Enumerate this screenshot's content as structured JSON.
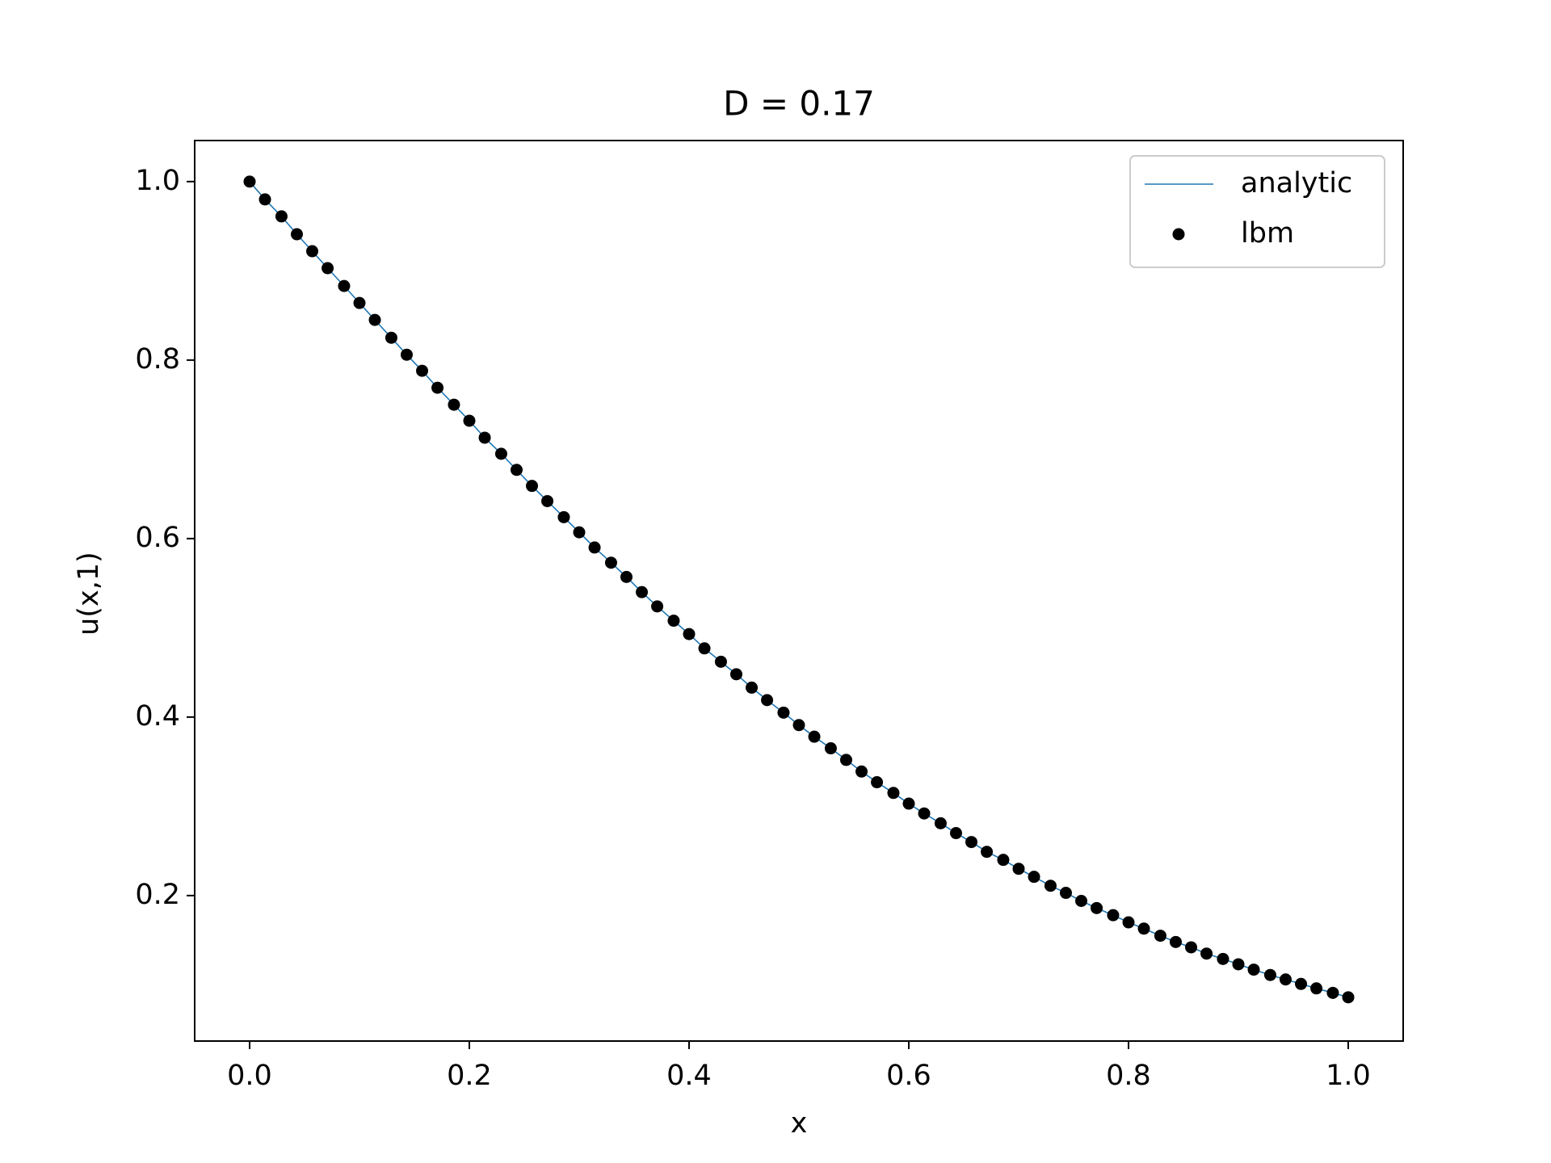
{
  "chart_data": {
    "type": "line-scatter",
    "title": "D = 0.17",
    "x_label": "x",
    "y_label": "u(x,1)",
    "x": [
      0,
      0.014,
      0.029,
      0.043,
      0.057,
      0.071,
      0.086,
      0.1,
      0.114,
      0.129,
      0.143,
      0.157,
      0.171,
      0.186,
      0.2,
      0.214,
      0.229,
      0.243,
      0.257,
      0.271,
      0.286,
      0.3,
      0.314,
      0.329,
      0.343,
      0.357,
      0.371,
      0.386,
      0.4,
      0.414,
      0.429,
      0.443,
      0.457,
      0.471,
      0.486,
      0.5,
      0.514,
      0.529,
      0.543,
      0.557,
      0.571,
      0.586,
      0.6,
      0.614,
      0.629,
      0.643,
      0.657,
      0.671,
      0.686,
      0.7,
      0.714,
      0.729,
      0.743,
      0.757,
      0.771,
      0.786,
      0.8,
      0.814,
      0.829,
      0.843,
      0.857,
      0.871,
      0.886,
      0.9,
      0.914,
      0.929,
      0.943,
      0.957,
      0.971,
      0.986,
      1.0
    ],
    "series": [
      {
        "name": "analytic",
        "style": "line",
        "color": "#1f77b4",
        "values": [
          1.0,
          0.98,
          0.961,
          0.941,
          0.922,
          0.903,
          0.883,
          0.864,
          0.845,
          0.825,
          0.806,
          0.788,
          0.769,
          0.75,
          0.732,
          0.713,
          0.695,
          0.677,
          0.659,
          0.642,
          0.624,
          0.607,
          0.59,
          0.573,
          0.557,
          0.54,
          0.524,
          0.508,
          0.493,
          0.477,
          0.462,
          0.448,
          0.433,
          0.419,
          0.405,
          0.391,
          0.378,
          0.365,
          0.352,
          0.339,
          0.327,
          0.315,
          0.303,
          0.292,
          0.281,
          0.27,
          0.26,
          0.249,
          0.24,
          0.23,
          0.221,
          0.211,
          0.203,
          0.194,
          0.186,
          0.178,
          0.17,
          0.163,
          0.155,
          0.148,
          0.142,
          0.135,
          0.129,
          0.123,
          0.117,
          0.111,
          0.106,
          0.101,
          0.096,
          0.091,
          0.086
        ]
      },
      {
        "name": "lbm",
        "style": "scatter",
        "color": "#000000",
        "values": [
          1.0,
          0.98,
          0.961,
          0.941,
          0.922,
          0.903,
          0.883,
          0.864,
          0.845,
          0.825,
          0.806,
          0.788,
          0.769,
          0.75,
          0.732,
          0.713,
          0.695,
          0.677,
          0.659,
          0.642,
          0.624,
          0.607,
          0.59,
          0.573,
          0.557,
          0.54,
          0.524,
          0.508,
          0.493,
          0.477,
          0.462,
          0.448,
          0.433,
          0.419,
          0.405,
          0.391,
          0.378,
          0.365,
          0.352,
          0.339,
          0.327,
          0.315,
          0.303,
          0.292,
          0.281,
          0.27,
          0.26,
          0.249,
          0.24,
          0.23,
          0.221,
          0.211,
          0.203,
          0.194,
          0.186,
          0.178,
          0.17,
          0.163,
          0.155,
          0.148,
          0.142,
          0.135,
          0.129,
          0.123,
          0.117,
          0.111,
          0.106,
          0.101,
          0.096,
          0.091,
          0.086
        ]
      }
    ],
    "xlim": [
      -0.05,
      1.05
    ],
    "ylim": [
      0.037,
      1.046
    ],
    "xticks": [
      {
        "value": 0,
        "label": "0.0"
      },
      0.2,
      0.4,
      0.6,
      0.8,
      {
        "value": 1,
        "label": "1.0"
      }
    ],
    "yticks": [
      0.2,
      0.4,
      0.6,
      0.8,
      {
        "value": 1,
        "label": "1.0"
      }
    ],
    "grid": false,
    "legend": "upper right"
  }
}
